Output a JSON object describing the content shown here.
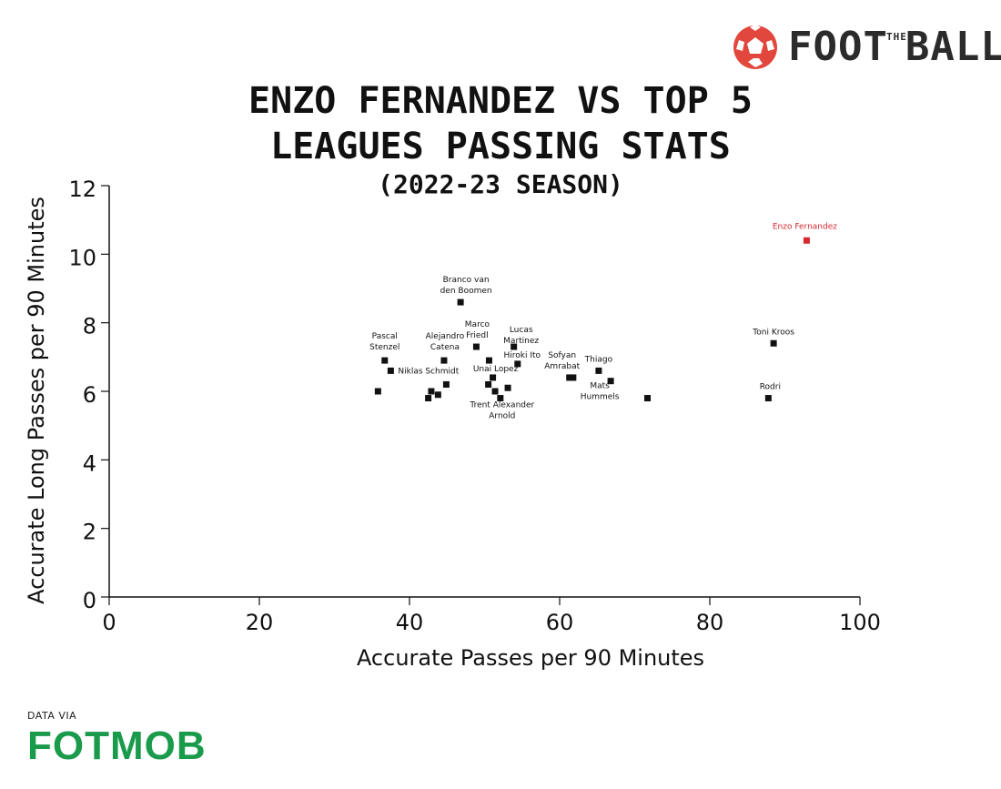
{
  "brand": {
    "name_left": "FOOT",
    "name_mid": "THE",
    "name_right": "BALL",
    "icon": "football-icon",
    "accent": "#e2473d"
  },
  "title": {
    "line1": "ENZO FERNANDEZ VS TOP 5",
    "line2": "LEAGUES PASSING STATS",
    "subtitle": "(2022-23 SEASON)"
  },
  "credit": {
    "via": "DATA VIA",
    "logo": "FOTMOB",
    "logo_color": "#1a9b4b"
  },
  "chart_data": {
    "type": "scatter",
    "xlabel": "Accurate Passes per 90 Minutes",
    "ylabel": "Accurate Long Passes per 90 Minutes",
    "xlim": [
      0,
      100
    ],
    "ylim": [
      0,
      12
    ],
    "xticks": [
      0,
      20,
      40,
      60,
      80,
      100
    ],
    "yticks": [
      0,
      2,
      4,
      6,
      8,
      10,
      12
    ],
    "grid": false,
    "point_color": "#111111",
    "highlight_color": "#d7282f",
    "points": [
      {
        "x": 92.9,
        "y": 10.4,
        "label": [
          "Enzo Fernandez"
        ],
        "highlight": true
      },
      {
        "x": 88.5,
        "y": 7.4,
        "label": [
          "Toni Kroos"
        ]
      },
      {
        "x": 87.8,
        "y": 5.8,
        "label": [
          "Rodri"
        ]
      },
      {
        "x": 71.7,
        "y": 5.8
      },
      {
        "x": 46.8,
        "y": 8.6,
        "label": [
          "Branco van",
          "den Boomen"
        ]
      },
      {
        "x": 48.9,
        "y": 7.3,
        "label": [
          "Marco",
          "Friedl"
        ]
      },
      {
        "x": 53.9,
        "y": 7.3,
        "label": [
          "Lucas",
          "Martinez"
        ]
      },
      {
        "x": 36.7,
        "y": 6.9,
        "label": [
          "Pascal",
          "Stenzel"
        ]
      },
      {
        "x": 44.6,
        "y": 6.9,
        "label": [
          "Alejandro",
          "Catena"
        ]
      },
      {
        "x": 50.6,
        "y": 6.9
      },
      {
        "x": 54.4,
        "y": 6.8,
        "label": [
          "Hiroki Ito"
        ]
      },
      {
        "x": 37.5,
        "y": 6.6,
        "label": [
          "Niklas Schmidt"
        ]
      },
      {
        "x": 51.1,
        "y": 6.4,
        "label": [
          "Unai Lopez"
        ]
      },
      {
        "x": 61.3,
        "y": 6.4,
        "label": [
          "Sofyan",
          "Amrabat"
        ]
      },
      {
        "x": 61.8,
        "y": 6.4
      },
      {
        "x": 65.2,
        "y": 6.6,
        "label": [
          "Thiago"
        ]
      },
      {
        "x": 66.8,
        "y": 6.3,
        "label": [
          "Mats",
          "Hummels"
        ]
      },
      {
        "x": 44.9,
        "y": 6.2
      },
      {
        "x": 50.5,
        "y": 6.2
      },
      {
        "x": 53.1,
        "y": 6.1
      },
      {
        "x": 35.8,
        "y": 6.0
      },
      {
        "x": 42.9,
        "y": 6.0
      },
      {
        "x": 51.4,
        "y": 6.0
      },
      {
        "x": 43.8,
        "y": 5.9
      },
      {
        "x": 42.5,
        "y": 5.8
      },
      {
        "x": 52.1,
        "y": 5.8,
        "label": [
          "Trent Alexander",
          "Arnold"
        ]
      }
    ]
  }
}
